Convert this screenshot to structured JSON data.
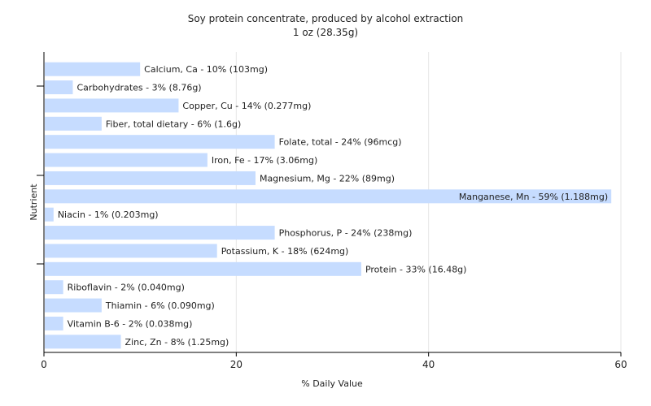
{
  "chart_data": {
    "type": "bar",
    "orientation": "horizontal",
    "title": "Soy protein concentrate, produced by alcohol extraction",
    "subtitle": "1 oz (28.35g)",
    "xlabel": "% Daily Value",
    "ylabel": "Nutrient",
    "xlim": [
      0,
      60
    ],
    "xticks": [
      0,
      20,
      40,
      60
    ],
    "grid": true,
    "bar_color": "#c6dcff",
    "categories": [
      "Calcium, Ca",
      "Carbohydrates",
      "Copper, Cu",
      "Fiber, total dietary",
      "Folate, total",
      "Iron, Fe",
      "Magnesium, Mg",
      "Manganese, Mn",
      "Niacin",
      "Phosphorus, P",
      "Potassium, K",
      "Protein",
      "Riboflavin",
      "Thiamin",
      "Vitamin B-6",
      "Zinc, Zn"
    ],
    "values": [
      10,
      3,
      14,
      6,
      24,
      17,
      22,
      59,
      1,
      24,
      18,
      33,
      2,
      6,
      2,
      8
    ],
    "labels": [
      "Calcium, Ca - 10% (103mg)",
      "Carbohydrates - 3% (8.76g)",
      "Copper, Cu - 14% (0.277mg)",
      "Fiber, total dietary - 6% (1.6g)",
      "Folate, total - 24% (96mcg)",
      "Iron, Fe - 17% (3.06mg)",
      "Magnesium, Mg - 22% (89mg)",
      "Manganese, Mn - 59% (1.188mg)",
      "Niacin - 1% (0.203mg)",
      "Phosphorus, P - 24% (238mg)",
      "Potassium, K - 18% (624mg)",
      "Protein - 33% (16.48g)",
      "Riboflavin - 2% (0.040mg)",
      "Thiamin - 6% (0.090mg)",
      "Vitamin B-6 - 2% (0.038mg)",
      "Zinc, Zn - 8% (1.25mg)"
    ]
  }
}
